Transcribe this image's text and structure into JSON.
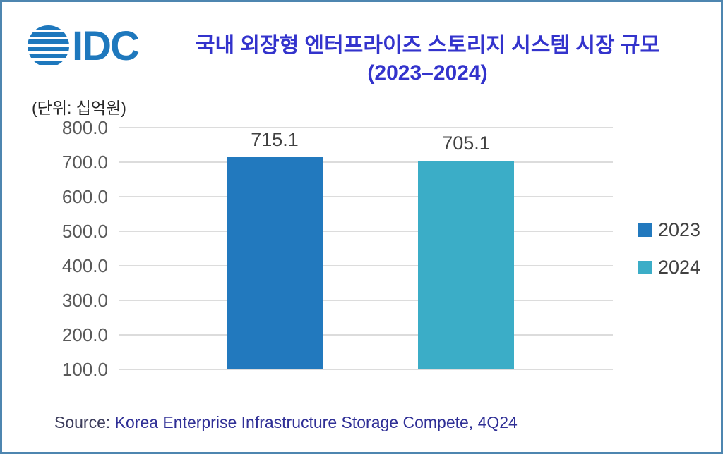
{
  "logo": {
    "text": "IDC",
    "color": "#1E78BD"
  },
  "header": {
    "title_line1": "국내 외장형 엔터프라이즈 스토리지 시스템 시장 규모",
    "title_line2": "(2023–2024)",
    "color": "#3333CC"
  },
  "unit_label": "(단위: 십억원)",
  "chart_data": {
    "type": "bar",
    "title": "국내 외장형 엔터프라이즈 스토리지 시스템 시장 규모 (2023–2024)",
    "unit": "(단위: 십억원)",
    "categories": [
      "2023",
      "2024"
    ],
    "values": [
      715.1,
      705.1
    ],
    "series": [
      {
        "name": "2023",
        "value": 715.1,
        "value_label": "715.1",
        "color": "#2279BE"
      },
      {
        "name": "2024",
        "value": 705.1,
        "value_label": "705.1",
        "color": "#3BADC7"
      }
    ],
    "xlabel": "",
    "ylabel": "",
    "ylim": [
      100,
      800
    ],
    "ytick_step": 100,
    "ytick_labels": [
      "800.0",
      "700.0",
      "600.0",
      "500.0",
      "400.0",
      "300.0",
      "200.0",
      "100.0"
    ],
    "grid": true,
    "legend_position": "right"
  },
  "legend": {
    "items": [
      {
        "label": "2023",
        "color": "#2279BE"
      },
      {
        "label": "2024",
        "color": "#3BADC7"
      }
    ]
  },
  "source": {
    "prefix": "Source: ",
    "text": "Korea Enterprise Infrastructure Storage Compete, 4Q24"
  }
}
